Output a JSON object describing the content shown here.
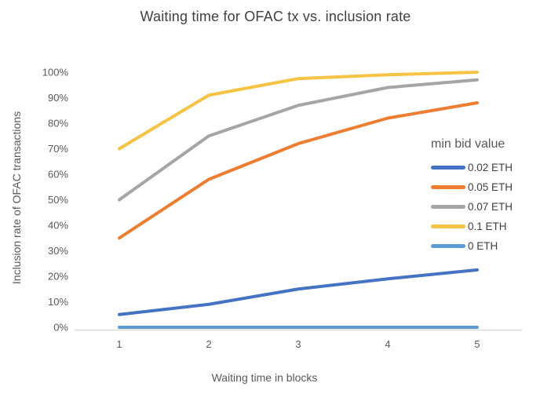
{
  "chart_data": {
    "type": "line",
    "title": "Waiting time for OFAC tx vs. inclusion rate",
    "xlabel": "Waiting time in blocks",
    "ylabel": "Inclusion rate of OFAC transactions",
    "legend_title": "min bid value",
    "legend_position": "right-inside",
    "grid": false,
    "categories": [
      "1",
      "2",
      "3",
      "4",
      "5"
    ],
    "ylim": [
      0,
      100
    ],
    "y_tick_step": 10,
    "y_tick_suffix": "%",
    "axis_color": "#D9D9D9",
    "text_color": "#595959",
    "title_color": "#404040",
    "series": [
      {
        "name": "0.02 ETH",
        "color": "#4472C4",
        "values": [
          5,
          9,
          15,
          19,
          22.5
        ]
      },
      {
        "name": "0.05 ETH",
        "color": "#ED7D31",
        "values": [
          35,
          58,
          72,
          82,
          88
        ]
      },
      {
        "name": "0.07 ETH",
        "color": "#A5A5A5",
        "values": [
          50,
          75,
          87,
          94,
          97
        ]
      },
      {
        "name": "0.1 ETH",
        "color": "#F6C344",
        "values": [
          70,
          91,
          97.5,
          99,
          100
        ]
      },
      {
        "name": "0 ETH",
        "color": "#5B9BD5",
        "values": [
          0,
          0,
          0,
          0,
          0
        ]
      }
    ]
  }
}
